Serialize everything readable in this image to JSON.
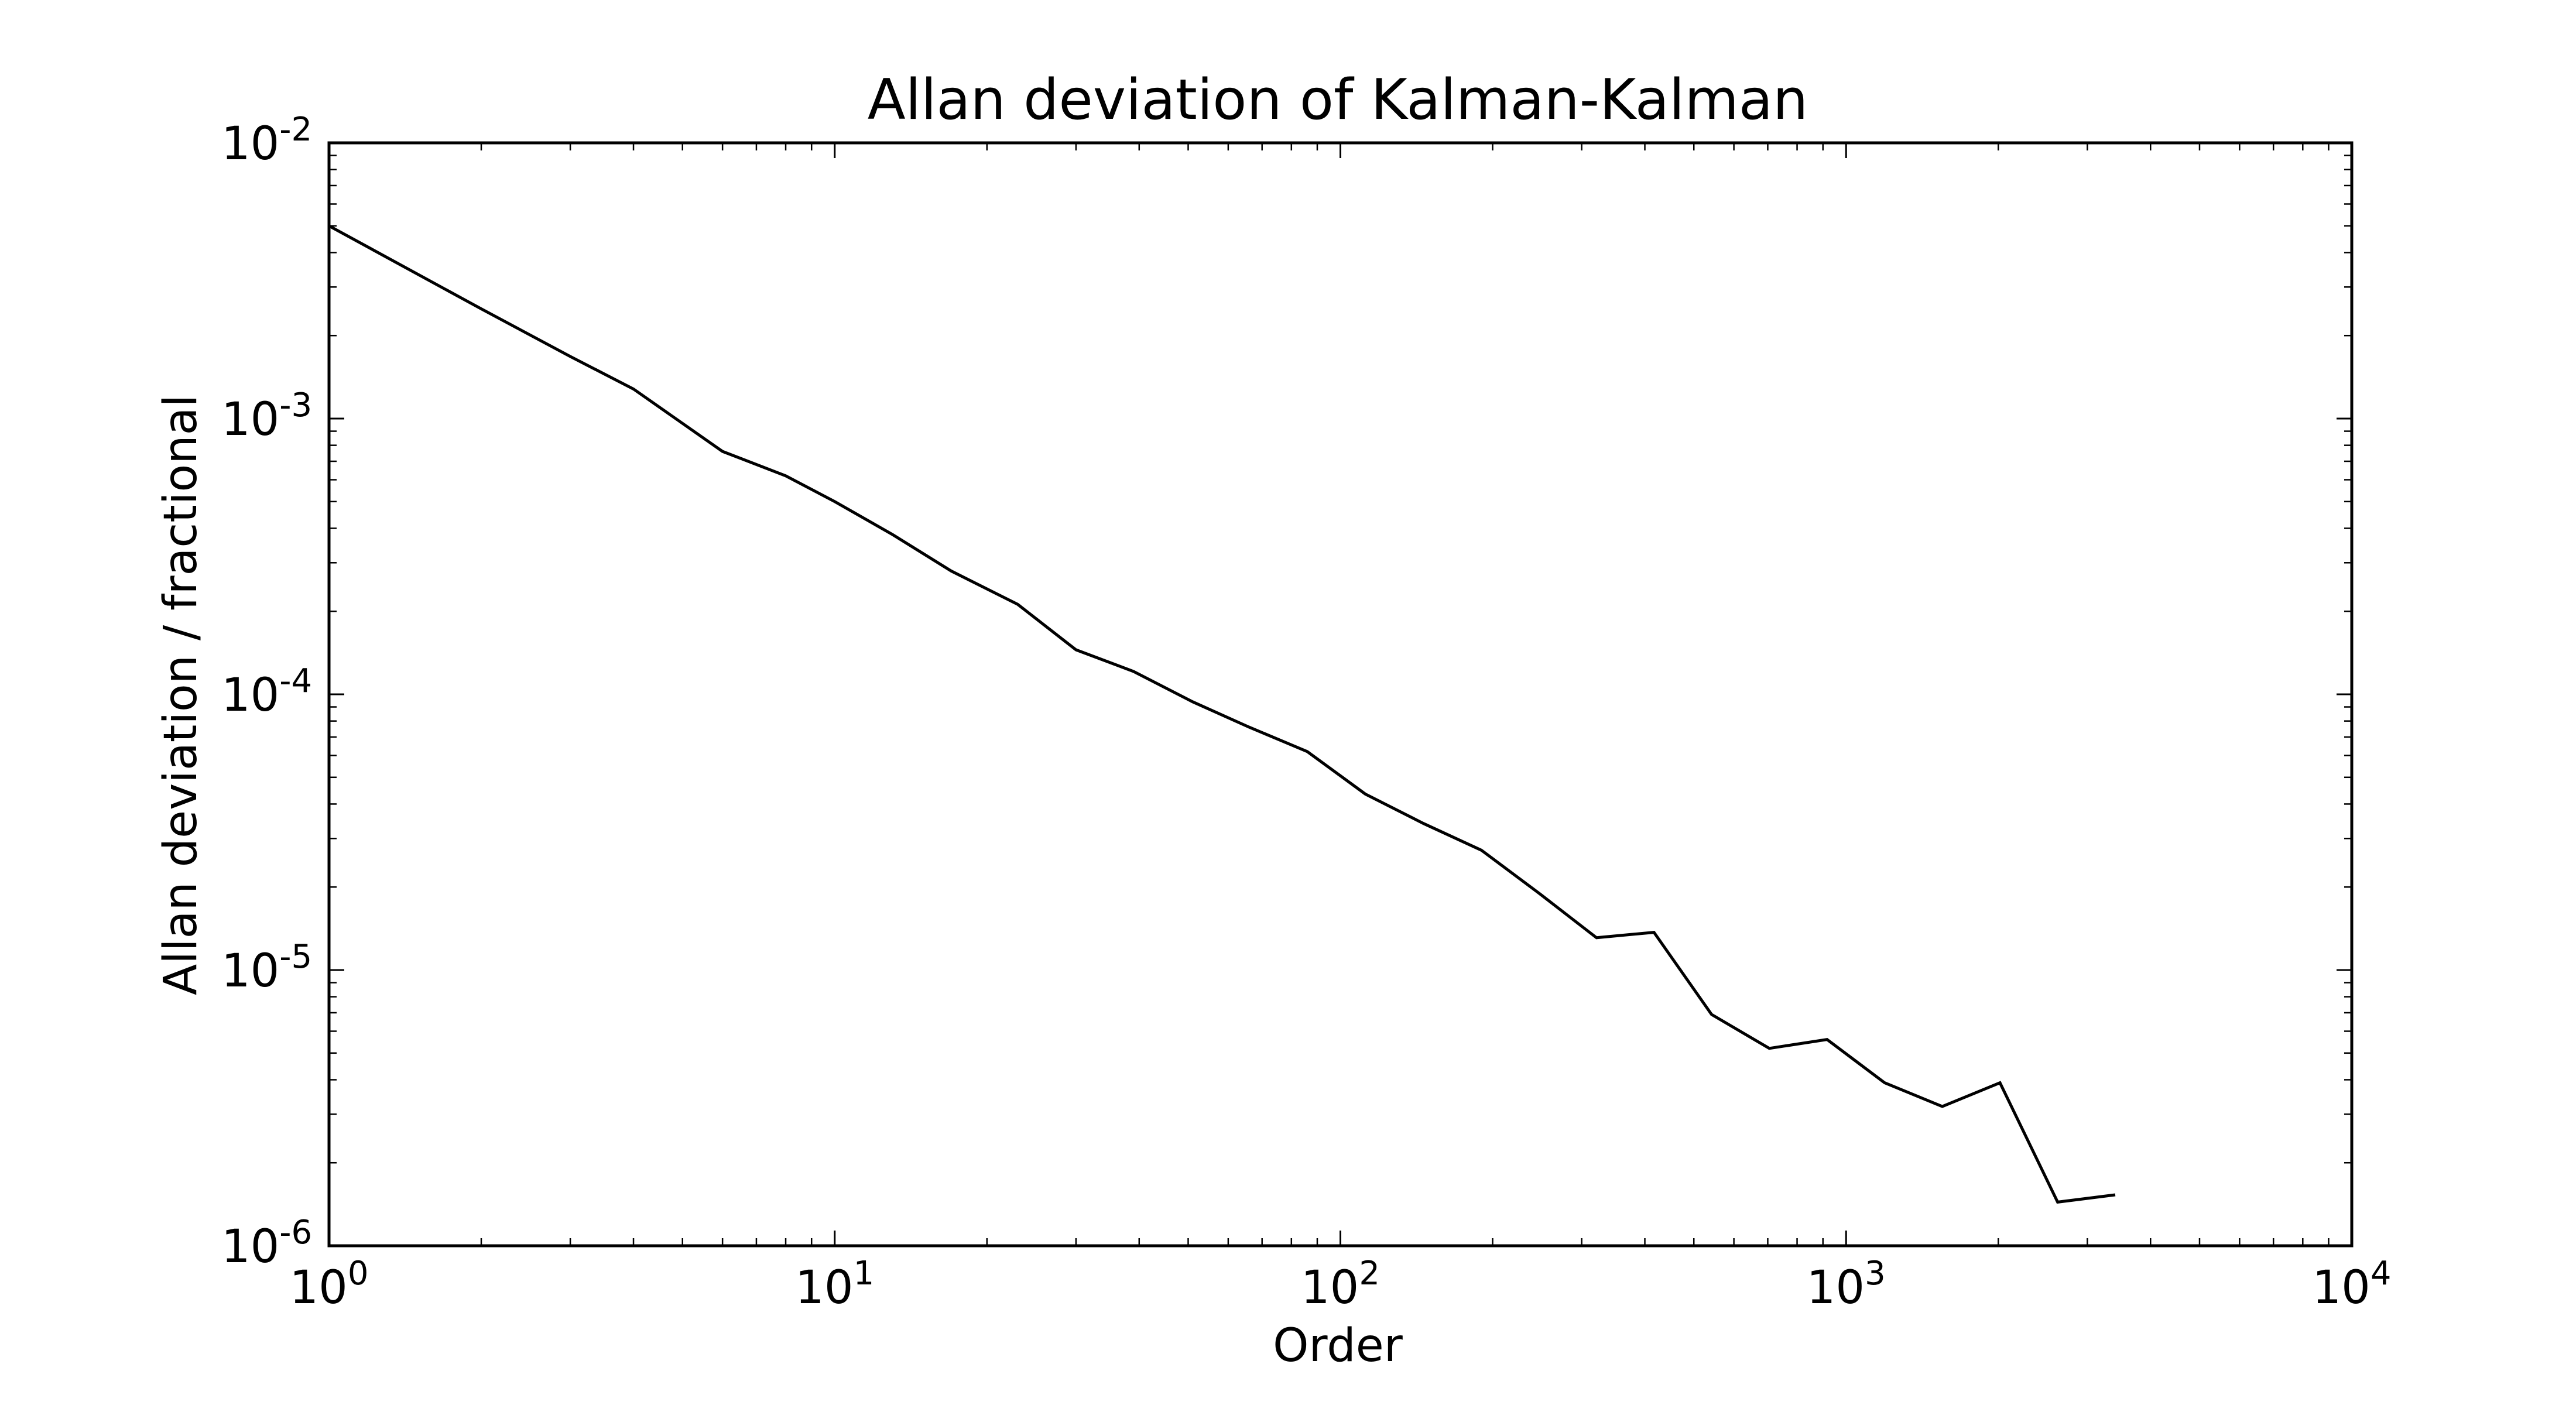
{
  "chart_data": {
    "type": "line",
    "title": "Allan deviation of Kalman-Kalman",
    "xlabel": "Order",
    "ylabel": "Allan deviation / fractional",
    "xscale": "log",
    "yscale": "log",
    "xlim": [
      1,
      10000
    ],
    "ylim": [
      1e-06,
      0.01
    ],
    "grid": false,
    "x_ticks": [
      {
        "value": 1,
        "base": "10",
        "exp": "0"
      },
      {
        "value": 10,
        "base": "10",
        "exp": "1"
      },
      {
        "value": 100,
        "base": "10",
        "exp": "2"
      },
      {
        "value": 1000,
        "base": "10",
        "exp": "3"
      },
      {
        "value": 10000,
        "base": "10",
        "exp": "4"
      }
    ],
    "y_ticks": [
      {
        "value": 0.01,
        "base": "10",
        "exp": "-2"
      },
      {
        "value": 0.001,
        "base": "10",
        "exp": "-3"
      },
      {
        "value": 0.0001,
        "base": "10",
        "exp": "-4"
      },
      {
        "value": 1e-05,
        "base": "10",
        "exp": "-5"
      },
      {
        "value": 1e-06,
        "base": "10",
        "exp": "-6"
      }
    ],
    "series": [
      {
        "name": "Allan deviation",
        "color": "#000000",
        "x": [
          1,
          2,
          3,
          4,
          6,
          8,
          10,
          13,
          17,
          23,
          30,
          39,
          51,
          66,
          86,
          112,
          146,
          190,
          247,
          321,
          417,
          542,
          705,
          917,
          1192,
          1550,
          2015,
          2620,
          3406
        ],
        "y": [
          0.005,
          0.0025,
          0.00168,
          0.00128,
          0.00076,
          0.00062,
          0.0005,
          0.00038,
          0.00028,
          0.000212,
          0.000145,
          0.000121,
          9.4e-05,
          7.6e-05,
          6.2e-05,
          4.35e-05,
          3.4e-05,
          2.72e-05,
          1.9e-05,
          1.31e-05,
          1.37e-05,
          6.9e-06,
          5.2e-06,
          5.6e-06,
          3.9e-06,
          3.2e-06,
          3.9e-06,
          1.44e-06,
          1.53e-06
        ]
      }
    ]
  }
}
